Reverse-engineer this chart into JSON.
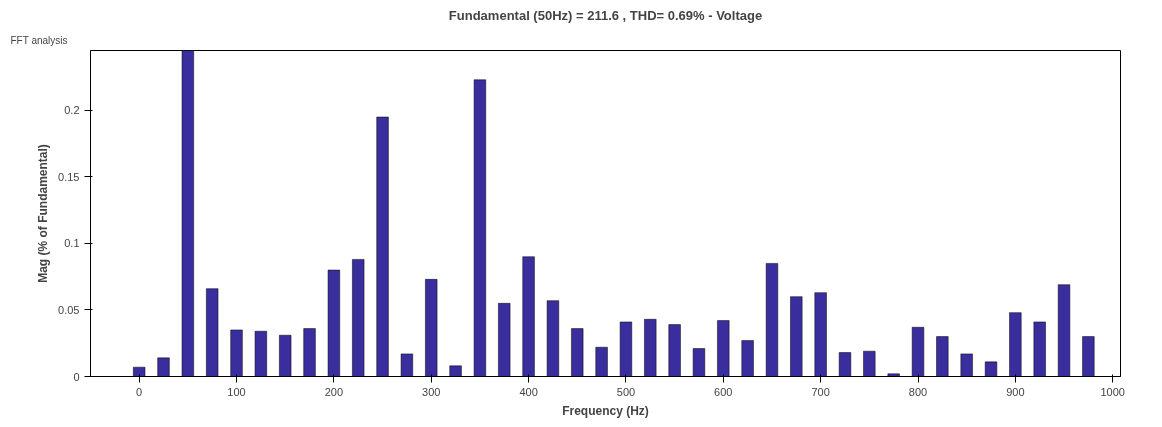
{
  "chart_data": {
    "type": "bar",
    "title": "Fundamental (50Hz) = 211.6 , THD= 0.69% - Voltage",
    "xlabel": "Frequency (Hz)",
    "ylabel": "Mag (% of Fundamental)",
    "annotations": [
      "FFT analysis"
    ],
    "x": [
      0,
      25,
      50,
      75,
      100,
      125,
      150,
      175,
      200,
      225,
      250,
      275,
      300,
      325,
      350,
      375,
      400,
      425,
      450,
      475,
      500,
      525,
      550,
      575,
      600,
      625,
      650,
      675,
      700,
      725,
      750,
      775,
      800,
      825,
      850,
      875,
      900,
      925,
      950,
      975
    ],
    "series": [
      {
        "color": "#3a2e9e",
        "values": [
          0.007,
          0.014,
          0.245,
          0.066,
          0.035,
          0.034,
          0.031,
          0.036,
          0.08,
          0.088,
          0.195,
          0.017,
          0.073,
          0.008,
          0.223,
          0.055,
          0.09,
          0.057,
          0.036,
          0.022,
          0.041,
          0.043,
          0.039,
          0.021,
          0.042,
          0.027,
          0.085,
          0.06,
          0.063,
          0.018,
          0.019,
          0.002,
          0.037,
          0.03,
          0.017,
          0.011,
          0.048,
          0.041,
          0.069,
          0.03
        ]
      }
    ],
    "xlim": [
      -50,
      1008
    ],
    "ylim": [
      0,
      0.245
    ],
    "xticks": [
      0,
      100,
      200,
      300,
      400,
      500,
      600,
      700,
      800,
      900,
      1000
    ],
    "yticks": [
      0,
      0.05,
      0.1,
      0.15,
      0.2
    ],
    "grid": false
  }
}
